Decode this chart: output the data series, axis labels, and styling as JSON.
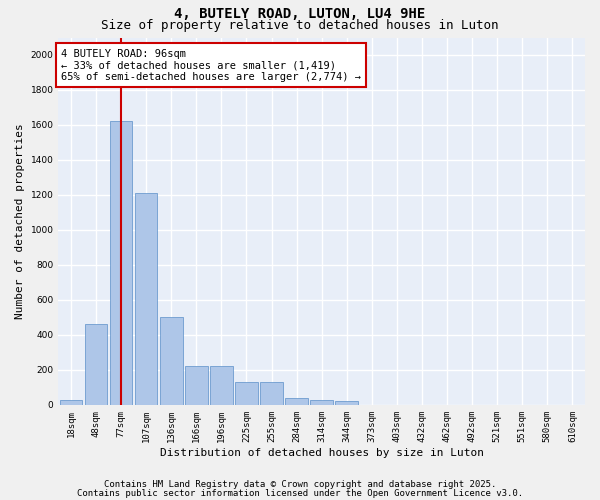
{
  "title": "4, BUTELY ROAD, LUTON, LU4 9HE",
  "subtitle": "Size of property relative to detached houses in Luton",
  "xlabel": "Distribution of detached houses by size in Luton",
  "ylabel": "Number of detached properties",
  "bar_labels": [
    "18sqm",
    "48sqm",
    "77sqm",
    "107sqm",
    "136sqm",
    "166sqm",
    "196sqm",
    "225sqm",
    "255sqm",
    "284sqm",
    "314sqm",
    "344sqm",
    "373sqm",
    "403sqm",
    "432sqm",
    "462sqm",
    "492sqm",
    "521sqm",
    "551sqm",
    "580sqm",
    "610sqm"
  ],
  "bar_values": [
    30,
    460,
    1620,
    1210,
    500,
    220,
    220,
    130,
    130,
    40,
    30,
    20,
    0,
    0,
    0,
    0,
    0,
    0,
    0,
    0,
    0
  ],
  "bar_color": "#aec6e8",
  "bar_edge_color": "#5b8fc9",
  "background_color": "#e8eef8",
  "grid_color": "#ffffff",
  "property_line_x": 2.0,
  "annotation_text": "4 BUTELY ROAD: 96sqm\n← 33% of detached houses are smaller (1,419)\n65% of semi-detached houses are larger (2,774) →",
  "annotation_box_color": "#ffffff",
  "annotation_box_edge": "#cc0000",
  "vline_color": "#cc0000",
  "ylim": [
    0,
    2100
  ],
  "yticks": [
    0,
    200,
    400,
    600,
    800,
    1000,
    1200,
    1400,
    1600,
    1800,
    2000
  ],
  "footer1": "Contains HM Land Registry data © Crown copyright and database right 2025.",
  "footer2": "Contains public sector information licensed under the Open Government Licence v3.0.",
  "title_fontsize": 10,
  "subtitle_fontsize": 9,
  "tick_fontsize": 6.5,
  "ylabel_fontsize": 8,
  "xlabel_fontsize": 8,
  "annotation_fontsize": 7.5,
  "footer_fontsize": 6.5,
  "fig_bg": "#f0f0f0"
}
